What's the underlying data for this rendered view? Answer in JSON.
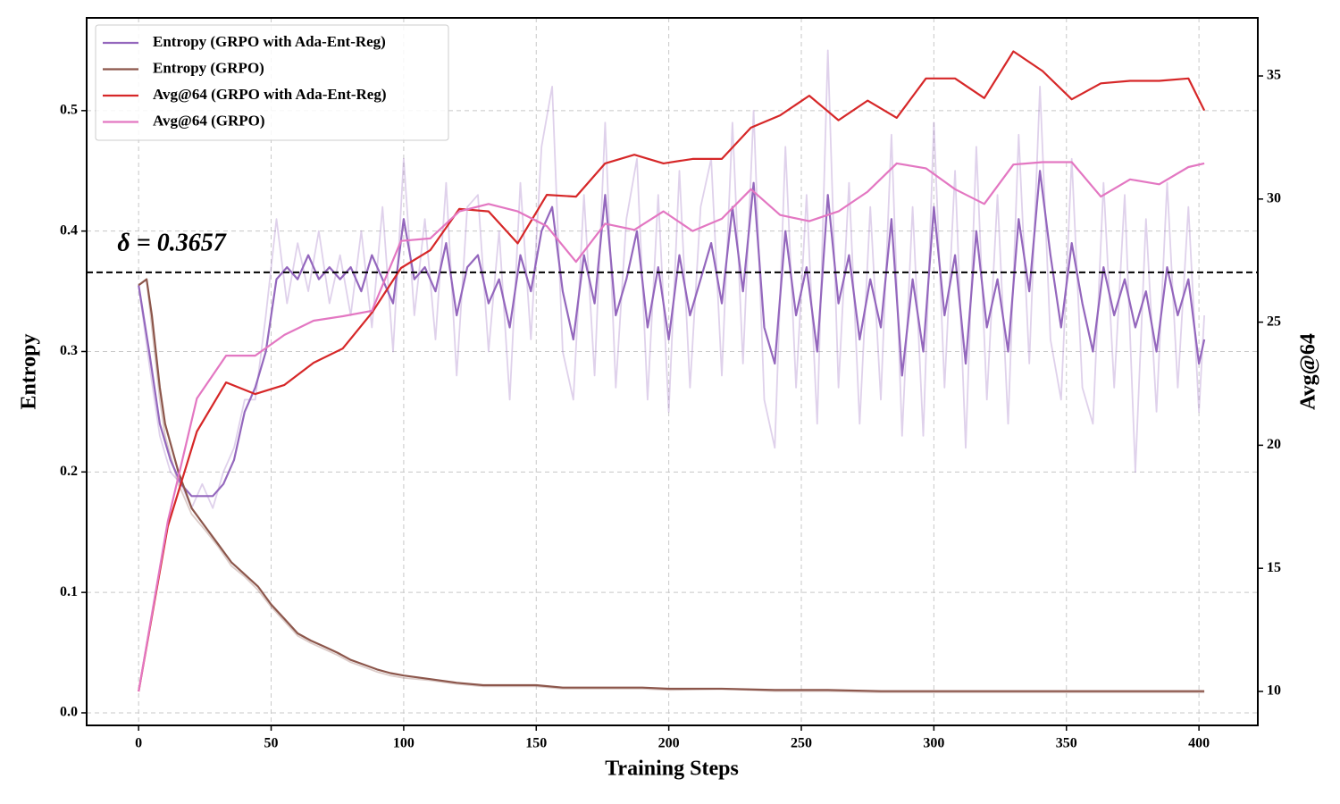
{
  "chart_data": {
    "type": "line",
    "xlabel": "Training Steps",
    "ylabel": "Entropy",
    "y2label": "Avg@64",
    "xlim": [
      -19.6,
      422.2
    ],
    "xticks": [
      0,
      50,
      100,
      150,
      200,
      250,
      300,
      350,
      400
    ],
    "ylim": [
      -0.0104,
      0.577
    ],
    "yticks": [
      {
        "value": 0,
        "label": "0.0"
      },
      0.1,
      0.2,
      0.3,
      0.4,
      0.5
    ],
    "y2lim": [
      8.62,
      37.36
    ],
    "y2ticks": [
      10,
      15,
      20,
      25,
      30,
      35
    ],
    "grid": true,
    "legend": "upper left",
    "hline": {
      "value": 0.3657,
      "label": "δ = 0.3657",
      "color": "#000000"
    },
    "series": [
      {
        "color": "#9467bd",
        "opacity": 0.3,
        "x": [
          0,
          4,
          8,
          12,
          16,
          20,
          24,
          28,
          32,
          36,
          40,
          44,
          48,
          52,
          56,
          60,
          64,
          68,
          72,
          76,
          80,
          84,
          88,
          92,
          96,
          100,
          104,
          108,
          112,
          116,
          120,
          124,
          128,
          132,
          136,
          140,
          144,
          148,
          152,
          156,
          160,
          164,
          168,
          172,
          176,
          180,
          184,
          188,
          192,
          196,
          200,
          204,
          208,
          212,
          216,
          220,
          224,
          228,
          232,
          236,
          240,
          244,
          248,
          252,
          256,
          260,
          264,
          268,
          272,
          276,
          280,
          284,
          288,
          292,
          296,
          300,
          304,
          308,
          312,
          316,
          320,
          324,
          328,
          332,
          336,
          340,
          344,
          348,
          352,
          356,
          360,
          364,
          368,
          372,
          376,
          380,
          384,
          388,
          392,
          396,
          400,
          402
        ],
        "values": [
          0.355,
          0.29,
          0.23,
          0.2,
          0.19,
          0.17,
          0.19,
          0.17,
          0.2,
          0.22,
          0.26,
          0.26,
          0.33,
          0.41,
          0.34,
          0.39,
          0.35,
          0.4,
          0.34,
          0.38,
          0.33,
          0.4,
          0.32,
          0.42,
          0.3,
          0.46,
          0.33,
          0.41,
          0.31,
          0.44,
          0.28,
          0.42,
          0.43,
          0.3,
          0.4,
          0.26,
          0.44,
          0.31,
          0.47,
          0.52,
          0.3,
          0.26,
          0.43,
          0.28,
          0.49,
          0.27,
          0.41,
          0.46,
          0.26,
          0.43,
          0.25,
          0.45,
          0.27,
          0.42,
          0.46,
          0.28,
          0.49,
          0.29,
          0.5,
          0.26,
          0.22,
          0.47,
          0.27,
          0.43,
          0.24,
          0.55,
          0.27,
          0.44,
          0.24,
          0.42,
          0.26,
          0.48,
          0.23,
          0.42,
          0.23,
          0.49,
          0.27,
          0.45,
          0.22,
          0.47,
          0.26,
          0.43,
          0.24,
          0.48,
          0.29,
          0.52,
          0.31,
          0.26,
          0.46,
          0.27,
          0.24,
          0.44,
          0.27,
          0.43,
          0.2,
          0.41,
          0.25,
          0.44,
          0.27,
          0.42,
          0.25,
          0.33
        ]
      },
      {
        "color": "#8c564b",
        "opacity": 0.3,
        "x": [
          0,
          3,
          5,
          8,
          10,
          15,
          20,
          25,
          30,
          35,
          40,
          45,
          50,
          55,
          60,
          65,
          70,
          75,
          80,
          85,
          90,
          95,
          100,
          110,
          120,
          130,
          140,
          150,
          160,
          170,
          180,
          190,
          200,
          220,
          240,
          260,
          280,
          300,
          320,
          340,
          360,
          380,
          402
        ],
        "values": [
          0.355,
          0.36,
          0.32,
          0.26,
          0.23,
          0.19,
          0.165,
          0.152,
          0.138,
          0.122,
          0.113,
          0.102,
          0.088,
          0.076,
          0.064,
          0.058,
          0.053,
          0.048,
          0.042,
          0.038,
          0.034,
          0.031,
          0.029,
          0.027,
          0.024,
          0.022,
          0.022,
          0.022,
          0.02,
          0.02,
          0.02,
          0.02,
          0.019,
          0.02,
          0.018,
          0.018,
          0.017,
          0.017,
          0.017,
          0.017,
          0.017,
          0.017,
          0.017
        ]
      },
      {
        "name": "Entropy (GRPO with Ada-Ent-Reg)",
        "color": "#9467bd",
        "x": [
          0,
          4,
          8,
          12,
          16,
          20,
          24,
          28,
          32,
          36,
          40,
          44,
          48,
          52,
          56,
          60,
          64,
          68,
          72,
          76,
          80,
          84,
          88,
          92,
          96,
          100,
          104,
          108,
          112,
          116,
          120,
          124,
          128,
          132,
          136,
          140,
          144,
          148,
          152,
          156,
          160,
          164,
          168,
          172,
          176,
          180,
          184,
          188,
          192,
          196,
          200,
          204,
          208,
          212,
          216,
          220,
          224,
          228,
          232,
          236,
          240,
          244,
          248,
          252,
          256,
          260,
          264,
          268,
          272,
          276,
          280,
          284,
          288,
          292,
          296,
          300,
          304,
          308,
          312,
          316,
          320,
          324,
          328,
          332,
          336,
          340,
          344,
          348,
          352,
          356,
          360,
          364,
          368,
          372,
          376,
          380,
          384,
          388,
          392,
          396,
          400,
          402
        ],
        "values": [
          0.355,
          0.3,
          0.24,
          0.21,
          0.19,
          0.18,
          0.18,
          0.18,
          0.19,
          0.21,
          0.25,
          0.27,
          0.3,
          0.36,
          0.37,
          0.36,
          0.38,
          0.36,
          0.37,
          0.36,
          0.37,
          0.35,
          0.38,
          0.36,
          0.34,
          0.41,
          0.36,
          0.37,
          0.35,
          0.39,
          0.33,
          0.37,
          0.38,
          0.34,
          0.36,
          0.32,
          0.38,
          0.35,
          0.4,
          0.42,
          0.35,
          0.31,
          0.38,
          0.34,
          0.43,
          0.33,
          0.36,
          0.4,
          0.32,
          0.37,
          0.31,
          0.38,
          0.33,
          0.36,
          0.39,
          0.34,
          0.42,
          0.35,
          0.44,
          0.32,
          0.29,
          0.4,
          0.33,
          0.37,
          0.3,
          0.43,
          0.34,
          0.38,
          0.31,
          0.36,
          0.32,
          0.41,
          0.28,
          0.36,
          0.3,
          0.42,
          0.33,
          0.38,
          0.29,
          0.4,
          0.32,
          0.36,
          0.3,
          0.41,
          0.35,
          0.45,
          0.38,
          0.32,
          0.39,
          0.34,
          0.3,
          0.37,
          0.33,
          0.36,
          0.32,
          0.35,
          0.3,
          0.37,
          0.33,
          0.36,
          0.29,
          0.31
        ]
      },
      {
        "name": "Entropy (GRPO)",
        "color": "#8c564b",
        "x": [
          0,
          3,
          5,
          8,
          10,
          15,
          20,
          25,
          30,
          35,
          40,
          45,
          50,
          55,
          60,
          65,
          70,
          75,
          80,
          85,
          90,
          95,
          100,
          110,
          120,
          130,
          140,
          150,
          160,
          170,
          180,
          190,
          200,
          220,
          240,
          260,
          280,
          300,
          320,
          340,
          360,
          380,
          402
        ],
        "values": [
          0.355,
          0.36,
          0.33,
          0.27,
          0.24,
          0.2,
          0.17,
          0.155,
          0.14,
          0.125,
          0.115,
          0.105,
          0.09,
          0.078,
          0.066,
          0.06,
          0.055,
          0.05,
          0.044,
          0.04,
          0.036,
          0.033,
          0.031,
          0.028,
          0.025,
          0.023,
          0.023,
          0.023,
          0.021,
          0.021,
          0.021,
          0.021,
          0.02,
          0.02,
          0.019,
          0.019,
          0.018,
          0.018,
          0.018,
          0.018,
          0.018,
          0.018,
          0.018
        ]
      },
      {
        "name": "Avg@64 (GRPO with Ada-Ent-Reg)",
        "color": "#d62728",
        "axis": "y2",
        "x": [
          0,
          11,
          22,
          33,
          44,
          55,
          66,
          77,
          88,
          99,
          110,
          121,
          132,
          143,
          154,
          165,
          176,
          187,
          198,
          209,
          220,
          231,
          242,
          253,
          264,
          275,
          286,
          297,
          308,
          319,
          330,
          341,
          352,
          363,
          374,
          385,
          396,
          402
        ],
        "values": [
          10,
          16.7,
          20.56,
          22.55,
          22.08,
          22.45,
          23.35,
          23.93,
          25.38,
          27.2,
          27.92,
          29.6,
          29.5,
          28.2,
          30.17,
          30.1,
          31.45,
          31.8,
          31.45,
          31.63,
          31.63,
          32.9,
          33.4,
          34.2,
          33.2,
          34.0,
          33.3,
          34.9,
          34.9,
          34.1,
          36.0,
          35.2,
          34.05,
          34.7,
          34.8,
          34.8,
          34.9,
          33.6
        ]
      },
      {
        "name": "Avg@64 (GRPO)",
        "color": "#e377c2",
        "axis": "y2",
        "x": [
          0,
          11,
          22,
          33,
          44,
          55,
          66,
          77,
          88,
          99,
          110,
          121,
          132,
          143,
          154,
          165,
          176,
          187,
          198,
          209,
          220,
          231,
          242,
          253,
          264,
          275,
          286,
          297,
          308,
          319,
          330,
          341,
          352,
          363,
          374,
          385,
          396,
          402
        ],
        "values": [
          10,
          16.9,
          21.9,
          23.64,
          23.64,
          24.48,
          25.06,
          25.24,
          25.46,
          28.3,
          28.4,
          29.5,
          29.8,
          29.5,
          28.9,
          27.45,
          29.0,
          28.75,
          29.5,
          28.7,
          29.2,
          30.4,
          29.35,
          29.1,
          29.5,
          30.3,
          31.45,
          31.25,
          30.4,
          29.8,
          31.4,
          31.5,
          31.5,
          30.1,
          30.8,
          30.6,
          31.3,
          31.45
        ]
      }
    ]
  }
}
